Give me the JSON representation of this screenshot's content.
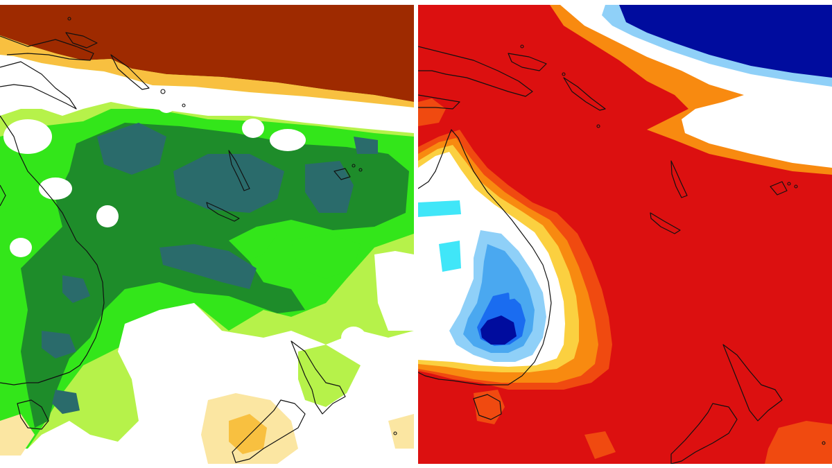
{
  "figure": {
    "panels": [
      {
        "id": "left",
        "description_key": "rainfall-anomaly-map"
      },
      {
        "id": "right",
        "description_key": "temperature-anomaly-map"
      }
    ]
  },
  "colors": {
    "left_panel": {
      "dark_teal": "#2a6b6b",
      "dark_green": "#1e8c2a",
      "mid_green": "#3cb83c",
      "bright_green": "#33e61a",
      "light_green": "#b6f24a",
      "white": "#ffffff",
      "pale_yellow": "#fbe6a2",
      "yellow": "#f8c040",
      "orange": "#e6a020",
      "brown": "#9e2a00"
    },
    "right_panel": {
      "red": "#dc1010",
      "orange_red": "#f04a10",
      "orange": "#f88a10",
      "yellow": "#fbd040",
      "pale_yellow": "#fff2b0",
      "white": "#ffffff",
      "cyan": "#40e6f8",
      "light_blue": "#8fd0f8",
      "sky_blue": "#4aa8f0",
      "blue": "#1a6cf0",
      "dark_blue": "#0a2cc8",
      "navy": "#000c9e"
    }
  }
}
